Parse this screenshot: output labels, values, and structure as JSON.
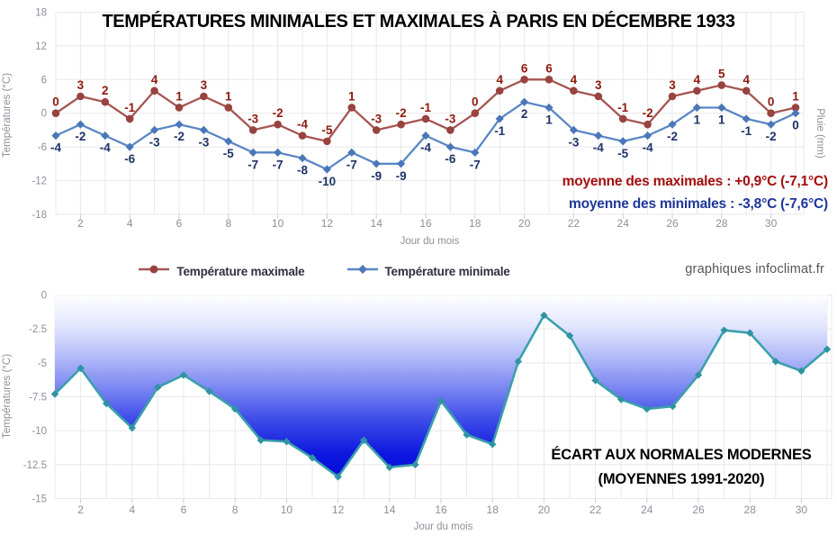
{
  "credit": "graphiques infoclimat.fr",
  "colors": {
    "title": "#000000",
    "max_line": "#a65552",
    "max_marker": "#98433f",
    "max_label": "#8e1a10",
    "max_annotation": "#a30d0d",
    "min_line": "#5b87c5",
    "min_marker": "#4a77b8",
    "min_label": "#1f3368",
    "min_annotation": "#1e3799",
    "axis_text": "#8b909a",
    "grid": "#e7e8ea",
    "tick": "#c9cbd0",
    "area_line": "#3aa0ab",
    "area_marker": "#2f93a3",
    "legend_text": "#2e3040",
    "credit": "#555555",
    "bottom_title": "#000000",
    "area_gradient_stops": [
      [
        "0%",
        "#ffffff"
      ],
      [
        "15%",
        "#e3e7fd"
      ],
      [
        "30%",
        "#b3bcf8"
      ],
      [
        "45%",
        "#7d89f2"
      ],
      [
        "60%",
        "#414fe9"
      ],
      [
        "78%",
        "#0d17df"
      ],
      [
        "100%",
        "#0000d6"
      ]
    ]
  },
  "chart_data": [
    {
      "type": "line",
      "title": "TEMPÉRATURES MINIMALES ET MAXIMALES À PARIS EN DÉCEMBRE 1933",
      "xlabel": "Jour du mois",
      "ylabel": "Températures (°C)",
      "y2label": "Pluie (mm)",
      "ylim": [
        -18,
        18
      ],
      "yticks": [
        18,
        12,
        6,
        0,
        -6,
        -12,
        -18
      ],
      "xticks": [
        2,
        4,
        6,
        8,
        10,
        12,
        14,
        16,
        18,
        20,
        22,
        24,
        26,
        28,
        30
      ],
      "x": [
        1,
        2,
        3,
        4,
        5,
        6,
        7,
        8,
        9,
        10,
        11,
        12,
        13,
        14,
        15,
        16,
        17,
        18,
        19,
        20,
        21,
        22,
        23,
        24,
        25,
        26,
        27,
        28,
        29,
        30,
        31
      ],
      "series": [
        {
          "name": "Température maximale",
          "marker": "circle",
          "values": [
            0,
            3,
            2,
            -1,
            4,
            1,
            3,
            1,
            -3,
            -2,
            -4,
            -5,
            1,
            -3,
            -2,
            -1,
            -3,
            0,
            4,
            6,
            6,
            4,
            3,
            -1,
            -2,
            3,
            4,
            5,
            4,
            0,
            1
          ]
        },
        {
          "name": "Température minimale",
          "marker": "diamond",
          "values": [
            -4,
            -2,
            -4,
            -6,
            -3,
            -2,
            -3,
            -5,
            -7,
            -7,
            -8,
            -10,
            -7,
            -9,
            -9,
            -4,
            -6,
            -7,
            -1,
            2,
            1,
            -3,
            -4,
            -5,
            -4,
            -2,
            1,
            1,
            -1,
            -2,
            0
          ]
        }
      ],
      "annotations": [
        "moyenne des maximales : +0,9°C (-7,1°C)",
        "moyenne des minimales : -3,8°C (-7,6°C)"
      ],
      "legend_position": "bottom",
      "grid": true
    },
    {
      "type": "area",
      "title_lines": [
        "ÉCART AUX NORMALES MODERNES",
        "(MOYENNES 1991-2020)"
      ],
      "xlabel": "Jour du mois",
      "ylabel": "Températures (°C)",
      "ylim": [
        -15,
        0
      ],
      "yticks": [
        0,
        -2.5,
        -5,
        -7.5,
        -10,
        -12.5,
        -15
      ],
      "xticks": [
        2,
        4,
        6,
        8,
        10,
        12,
        14,
        16,
        18,
        20,
        22,
        24,
        26,
        28,
        30
      ],
      "x": [
        1,
        2,
        3,
        4,
        5,
        6,
        7,
        8,
        9,
        10,
        11,
        12,
        13,
        14,
        15,
        16,
        17,
        18,
        19,
        20,
        21,
        22,
        23,
        24,
        25,
        26,
        27,
        28,
        29,
        30,
        31
      ],
      "values": [
        -7.3,
        -5.4,
        -8.0,
        -9.8,
        -6.8,
        -5.9,
        -7.1,
        -8.4,
        -10.7,
        -10.8,
        -12.0,
        -13.4,
        -10.7,
        -12.7,
        -12.5,
        -7.8,
        -10.3,
        -11.0,
        -4.9,
        -1.5,
        -3.0,
        -6.3,
        -7.7,
        -8.4,
        -8.2,
        -5.9,
        -2.6,
        -2.8,
        -4.9,
        -5.6,
        -4.0
      ],
      "grid": true
    }
  ]
}
